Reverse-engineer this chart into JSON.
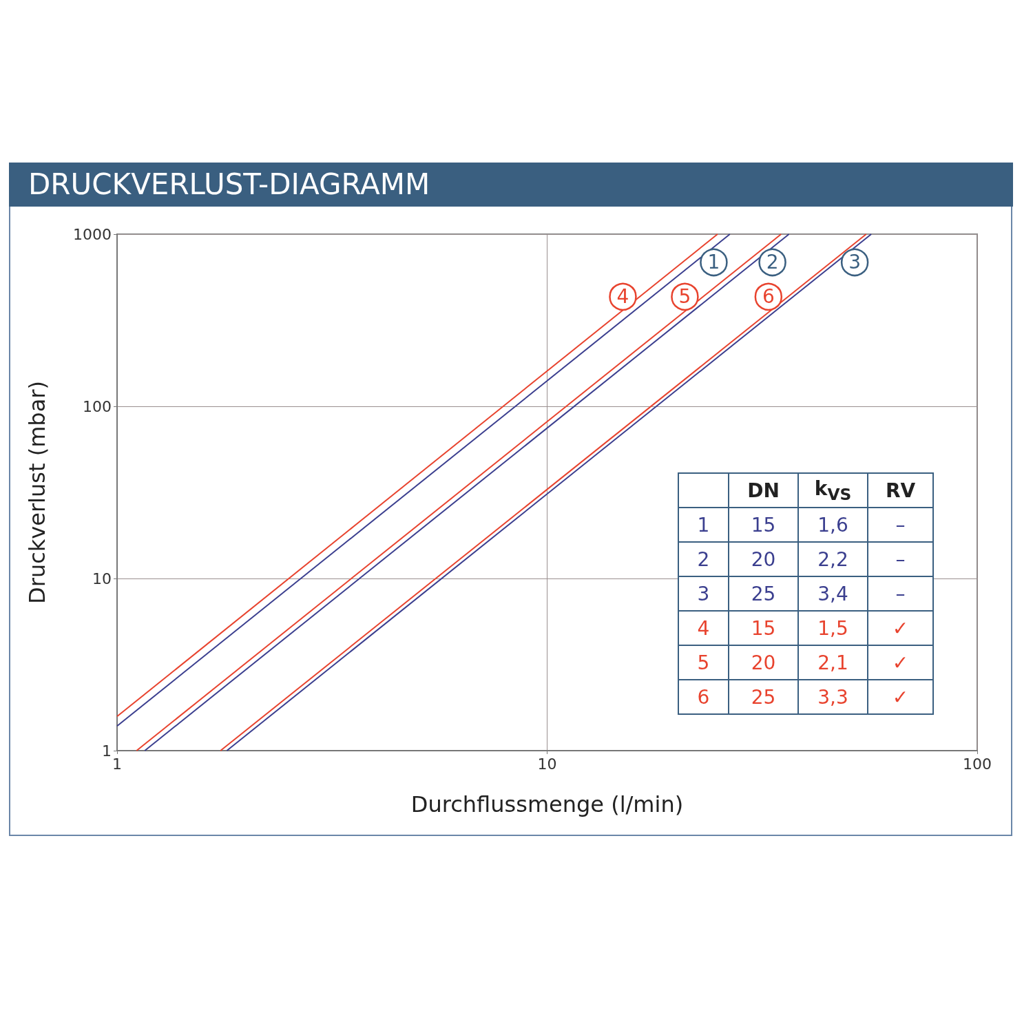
{
  "chart_data": {
    "type": "line",
    "title": "DRUCKVERLUST-DIAGRAMM",
    "xlabel": "Durchflussmenge (l/min)",
    "ylabel": "Druckverlust (mbar)",
    "log": "xy",
    "grid": true,
    "marker": "none",
    "line_style": "solid",
    "xlim": [
      1,
      100
    ],
    "xticks": [
      1,
      10,
      100
    ],
    "ylim": [
      1,
      1000
    ],
    "yticks": [
      1,
      10,
      100,
      1000
    ],
    "series": [
      {
        "color": "#3b3f8f",
        "x": [
          1,
          26.6
        ],
        "values": [
          1.39,
          1000
        ]
      },
      {
        "color": "#3b3f8f",
        "x": [
          1.16,
          36.5
        ],
        "values": [
          1,
          1000
        ]
      },
      {
        "color": "#3b3f8f",
        "x": [
          1.8,
          56.7
        ],
        "values": [
          1,
          1000
        ]
      },
      {
        "color": "#e8432e",
        "x": [
          1,
          24.9
        ],
        "values": [
          1.58,
          1000
        ]
      },
      {
        "color": "#e8432e",
        "x": [
          1.11,
          35
        ],
        "values": [
          1,
          1000
        ]
      },
      {
        "color": "#e8432e",
        "x": [
          1.74,
          55.2
        ],
        "values": [
          1,
          1000
        ]
      }
    ],
    "annotations": [
      {
        "text": "1",
        "x": 24.4,
        "y": 686
      },
      {
        "text": "2",
        "x": 33.4,
        "y": 686
      },
      {
        "text": "3",
        "x": 51.9,
        "y": 686
      },
      {
        "text": "4",
        "x": 15,
        "y": 433
      },
      {
        "text": "5",
        "x": 20.9,
        "y": 433
      },
      {
        "text": "6",
        "x": 32.7,
        "y": 433
      },
      "DN",
      "k$_{VS}$",
      "RV",
      "1",
      "15",
      "1,6",
      "–",
      "2",
      "20",
      "2,2",
      "–",
      "3",
      "25",
      "3,4",
      "–",
      "4",
      "15",
      "1,5",
      "✓",
      "5",
      "20",
      "2,1",
      "✓",
      "6",
      "25",
      "3,3",
      "✓"
    ]
  }
}
